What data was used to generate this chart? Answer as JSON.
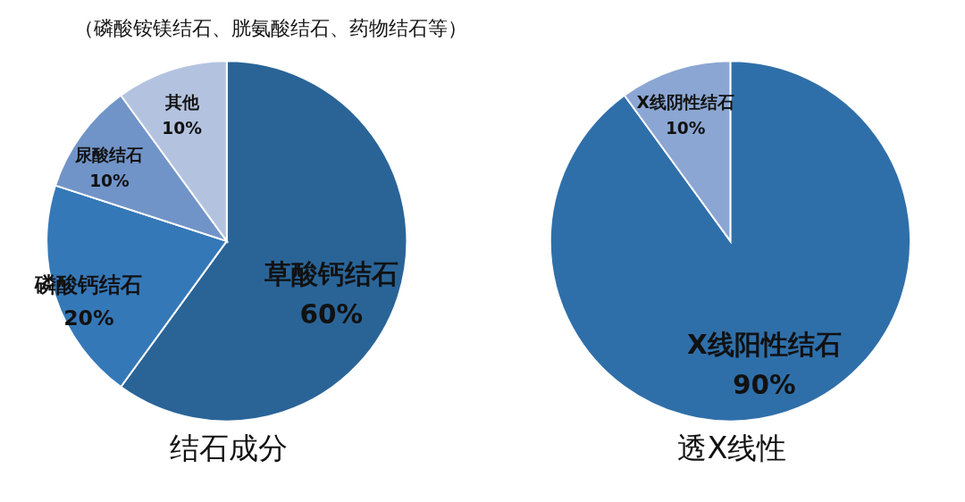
{
  "chart_data": [
    {
      "type": "pie",
      "title": "结石成分",
      "categories": [
        "草酸钙结石",
        "磷酸钙结石",
        "尿酸结石",
        "其他"
      ],
      "values": [
        60,
        20,
        10,
        10
      ],
      "value_labels": [
        "60%",
        "20%",
        "10%",
        "10%"
      ],
      "colors": [
        "#2a6497",
        "#3578b8",
        "#7194c8",
        "#b3c3df"
      ],
      "legend": false,
      "annotations": [
        "（磷酸铵镁结石、胱氨酸结石、药物结石等）"
      ]
    },
    {
      "type": "pie",
      "title": "透X线性",
      "categories": [
        "X线阳性结石",
        "X线阴性结石"
      ],
      "values": [
        90,
        10
      ],
      "value_labels": [
        "90%",
        "10%"
      ],
      "colors": [
        "#2f6fa9",
        "#8ba6d3"
      ],
      "legend": false
    }
  ]
}
